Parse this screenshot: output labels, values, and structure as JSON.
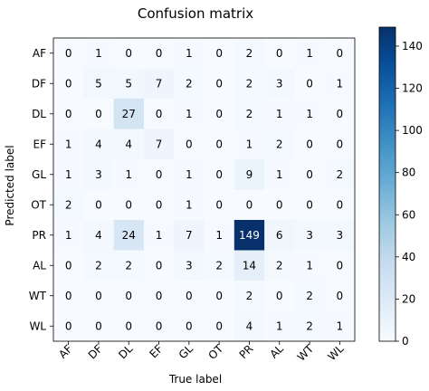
{
  "chart_data": {
    "type": "heatmap",
    "title": "Confusion matrix",
    "xlabel": "True label",
    "ylabel": "Predicted label",
    "x_categories": [
      "AF",
      "DF",
      "DL",
      "EF",
      "GL",
      "OT",
      "PR",
      "AL",
      "WT",
      "WL"
    ],
    "y_categories": [
      "AF",
      "DF",
      "DL",
      "EF",
      "GL",
      "OT",
      "PR",
      "AL",
      "WT",
      "WL"
    ],
    "values": [
      [
        0,
        1,
        0,
        0,
        1,
        0,
        2,
        0,
        1,
        0
      ],
      [
        0,
        5,
        5,
        7,
        2,
        0,
        2,
        3,
        0,
        1
      ],
      [
        0,
        0,
        27,
        0,
        1,
        0,
        2,
        1,
        1,
        0
      ],
      [
        1,
        4,
        4,
        7,
        0,
        0,
        1,
        2,
        0,
        0
      ],
      [
        1,
        3,
        1,
        0,
        1,
        0,
        9,
        1,
        0,
        2
      ],
      [
        2,
        0,
        0,
        0,
        1,
        0,
        0,
        0,
        0,
        0
      ],
      [
        1,
        4,
        24,
        1,
        7,
        1,
        149,
        6,
        3,
        3
      ],
      [
        0,
        2,
        2,
        0,
        3,
        2,
        14,
        2,
        1,
        0
      ],
      [
        0,
        0,
        0,
        0,
        0,
        0,
        2,
        0,
        2,
        0
      ],
      [
        0,
        0,
        0,
        0,
        0,
        0,
        4,
        1,
        2,
        1
      ]
    ],
    "colormap": "Blues",
    "vmin": 0,
    "vmax": 149,
    "colorbar_ticks": [
      0,
      20,
      40,
      60,
      80,
      100,
      120,
      140
    ]
  }
}
